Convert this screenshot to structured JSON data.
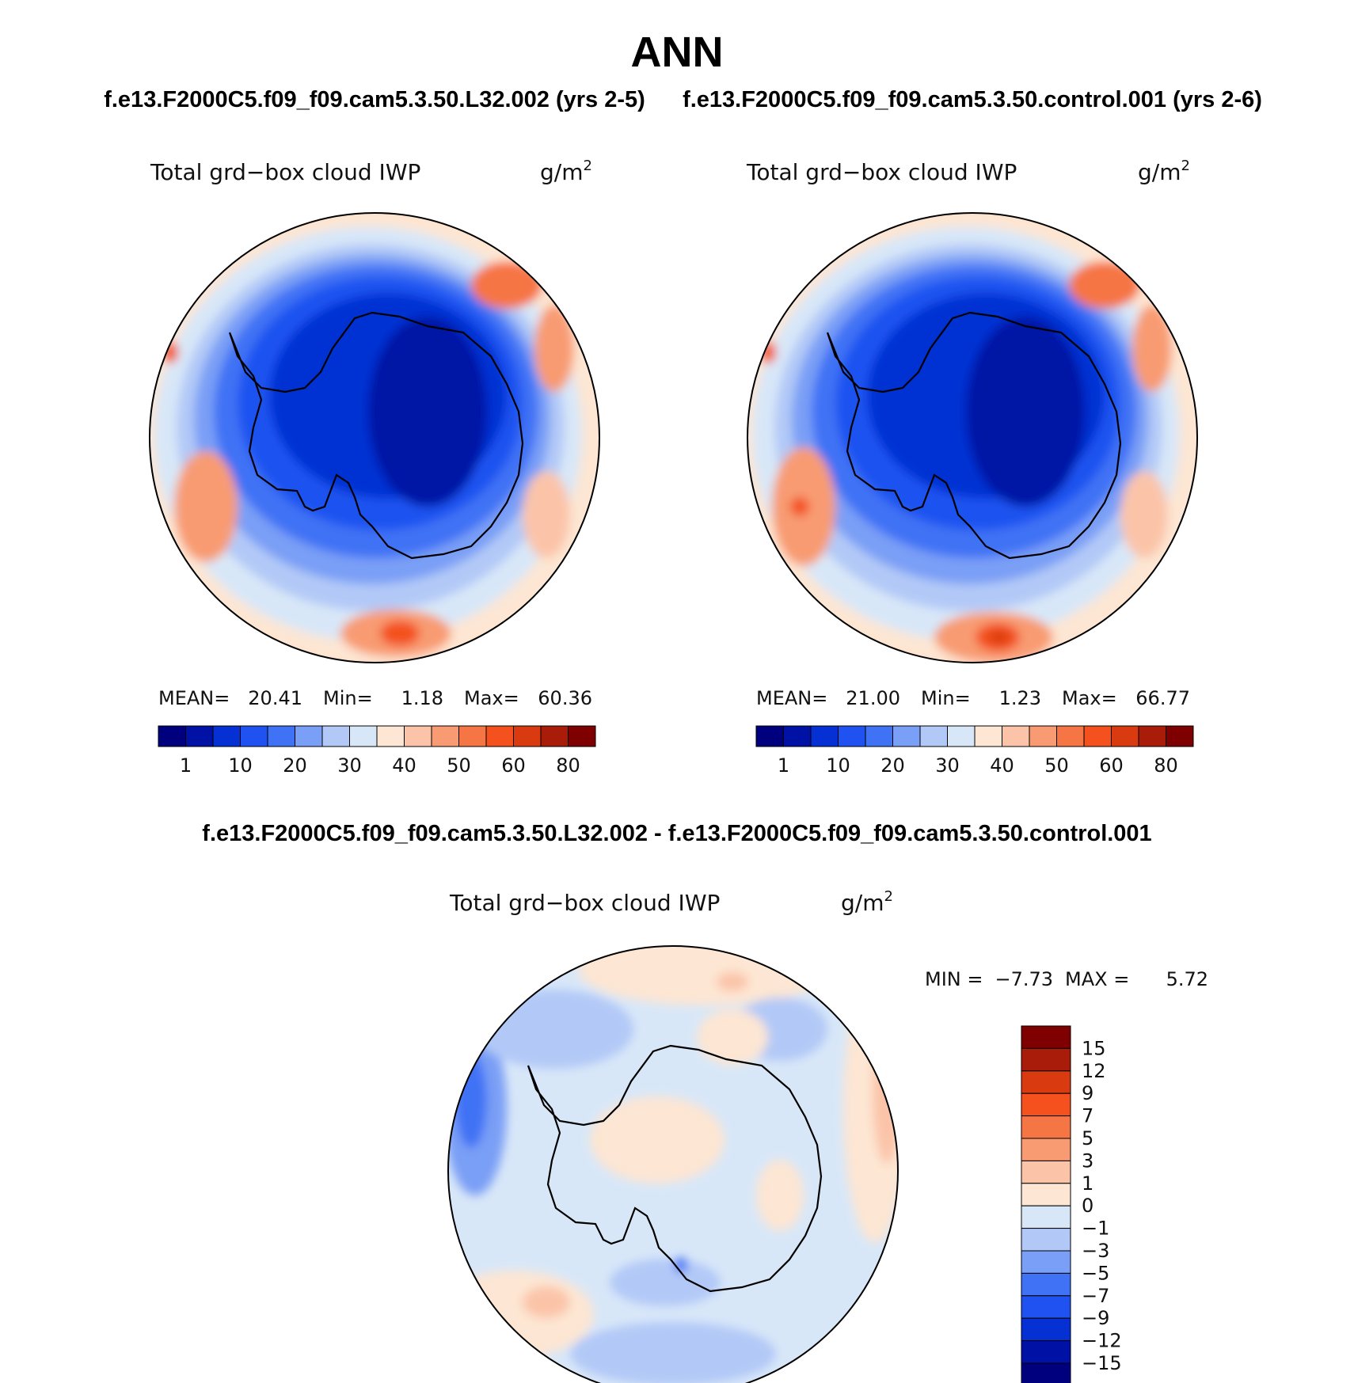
{
  "header": {
    "title": "ANN",
    "case_left": "f.e13.F2000C5.f09_f09.cam5.3.50.L32.002 (yrs 2-5)",
    "case_right": "f.e13.F2000C5.f09_f09.cam5.3.50.control.001 (yrs 2-6)",
    "diff_title": "f.e13.F2000C5.f09_f09.cam5.3.50.L32.002 - f.e13.F2000C5.f09_f09.cam5.3.50.control.001"
  },
  "panels": [
    {
      "id": "left",
      "variable": "Total grd−box cloud IWP",
      "units_base": "g/m",
      "units_exp": "2",
      "stats": {
        "mean_label": "MEAN=",
        "mean": "20.41",
        "min_label": "Min=",
        "min": "1.18",
        "max_label": "Max=",
        "max": "60.36"
      },
      "colorbar_ticks": [
        "1",
        "10",
        "20",
        "30",
        "40",
        "50",
        "60",
        "80"
      ]
    },
    {
      "id": "right",
      "variable": "Total grd−box cloud IWP",
      "units_base": "g/m",
      "units_exp": "2",
      "stats": {
        "mean_label": "MEAN=",
        "mean": "21.00",
        "min_label": "Min=",
        "min": "1.23",
        "max_label": "Max=",
        "max": "66.77"
      },
      "colorbar_ticks": [
        "1",
        "10",
        "20",
        "30",
        "40",
        "50",
        "60",
        "80"
      ]
    }
  ],
  "diff_panel": {
    "variable": "Total grd−box cloud IWP",
    "units_base": "g/m",
    "units_exp": "2",
    "min_label": "MIN =",
    "min": "−7.73",
    "max_label": "MAX =",
    "max": "5.72",
    "colorbar_ticks": [
      "15",
      "12",
      "9",
      "7",
      "5",
      "3",
      "1",
      "0",
      "−1",
      "−3",
      "−5",
      "−7",
      "−9",
      "−12",
      "−15"
    ]
  },
  "colors": {
    "field_scale": [
      "#00007f",
      "#0012a5",
      "#0530d3",
      "#1f52f0",
      "#3f72f5",
      "#7a9ff6",
      "#b2c9f7",
      "#d8e7f8",
      "#fde6d3",
      "#fbc4a9",
      "#f89b72",
      "#f67544",
      "#f4511e",
      "#da3a10",
      "#aa1c0a",
      "#7f0000"
    ],
    "diff_scale_top_to_bottom": [
      "#7f0000",
      "#aa1c0a",
      "#da3a10",
      "#f4511e",
      "#f67544",
      "#f89b72",
      "#fbc4a9",
      "#fde6d3",
      "#d8e7f8",
      "#b2c9f7",
      "#7a9ff6",
      "#3f72f5",
      "#1f52f0",
      "#0530d3",
      "#0012a5",
      "#00007f"
    ],
    "coastline": "#000000"
  }
}
